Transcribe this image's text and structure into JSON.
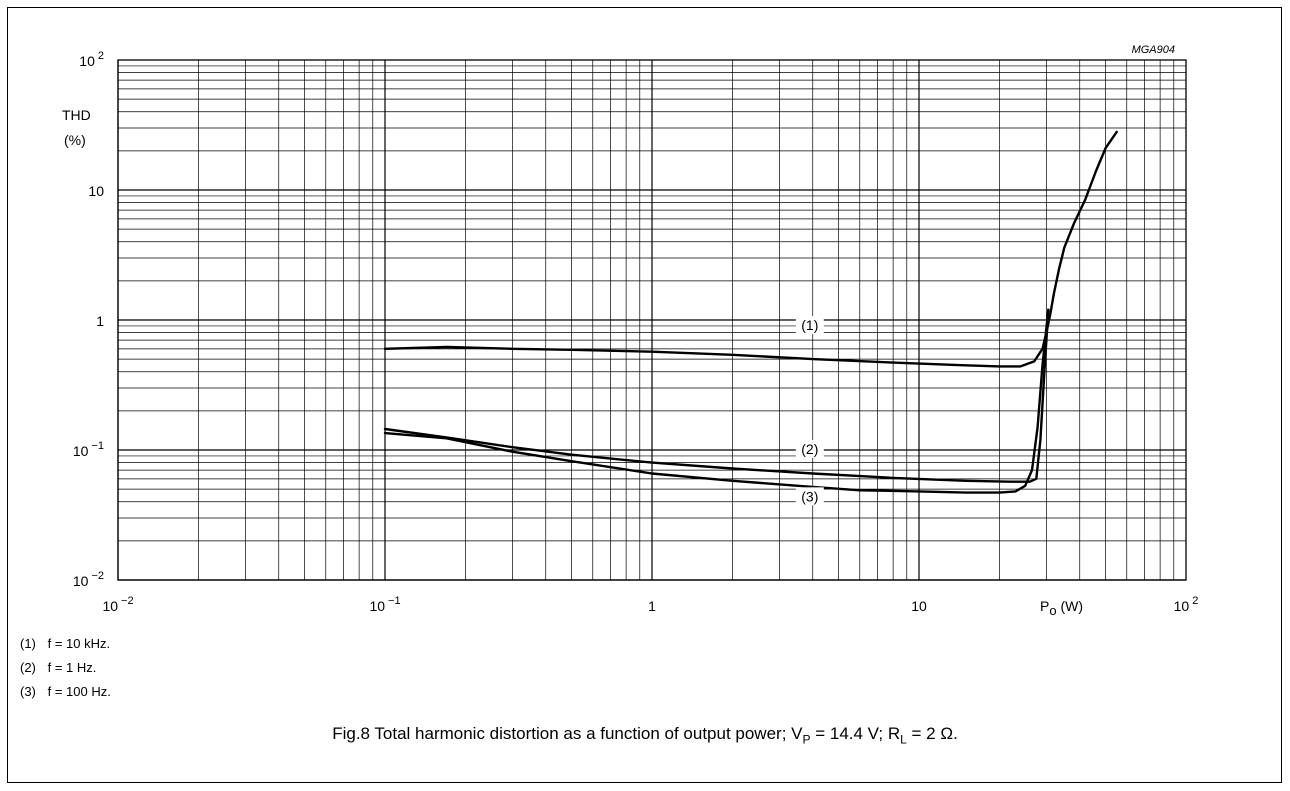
{
  "chart_data": {
    "type": "line",
    "code": "MGA904",
    "ylabel": "THD",
    "yunit": "(%)",
    "xlabel": "P",
    "xlabel_sub": "o",
    "xunit": "(W)",
    "x_scale": "log",
    "y_scale": "log",
    "xlim": [
      0.01,
      100
    ],
    "ylim": [
      0.01,
      100
    ],
    "grid": true,
    "x_ticks": [
      {
        "value": 0.01,
        "base": "10",
        "exp": "−2"
      },
      {
        "value": 0.1,
        "base": "10",
        "exp": "−1"
      },
      {
        "value": 1,
        "base": "1",
        "exp": ""
      },
      {
        "value": 10,
        "base": "10",
        "exp": ""
      },
      {
        "value": 100,
        "base": "10",
        "exp": "2"
      }
    ],
    "y_ticks": [
      {
        "value": 100,
        "base": "10",
        "exp": "2"
      },
      {
        "value": 10,
        "base": "10",
        "exp": ""
      },
      {
        "value": 1,
        "base": "1",
        "exp": ""
      },
      {
        "value": 0.1,
        "base": "10",
        "exp": "−1"
      },
      {
        "value": 0.01,
        "base": "10",
        "exp": "−2"
      }
    ],
    "series": [
      {
        "label": "(1)",
        "label_at": [
          3.9,
          0.85
        ],
        "points": [
          [
            0.1,
            0.6
          ],
          [
            0.17,
            0.62
          ],
          [
            0.3,
            0.6
          ],
          [
            0.5,
            0.59
          ],
          [
            1,
            0.57
          ],
          [
            2,
            0.54
          ],
          [
            4,
            0.5
          ],
          [
            8,
            0.47
          ],
          [
            14,
            0.45
          ],
          [
            20,
            0.44
          ],
          [
            24,
            0.44
          ],
          [
            27,
            0.48
          ],
          [
            29,
            0.6
          ],
          [
            30,
            0.8
          ],
          [
            31,
            1.1
          ],
          [
            32,
            1.6
          ],
          [
            33.5,
            2.5
          ],
          [
            35,
            3.6
          ],
          [
            38,
            5.5
          ],
          [
            42,
            8.5
          ],
          [
            46,
            14
          ],
          [
            50,
            21
          ],
          [
            55,
            28
          ]
        ]
      },
      {
        "label": "(2)",
        "label_at": [
          3.9,
          0.095
        ],
        "points": [
          [
            0.1,
            0.145
          ],
          [
            0.17,
            0.125
          ],
          [
            0.3,
            0.105
          ],
          [
            0.5,
            0.092
          ],
          [
            1,
            0.08
          ],
          [
            2,
            0.072
          ],
          [
            4,
            0.066
          ],
          [
            8,
            0.061
          ],
          [
            15,
            0.058
          ],
          [
            22,
            0.057
          ],
          [
            26,
            0.057
          ],
          [
            27.5,
            0.06
          ],
          [
            28.5,
            0.12
          ],
          [
            29.5,
            0.4
          ],
          [
            30.5,
            1.2
          ]
        ]
      },
      {
        "label": "(3)",
        "label_at": [
          3.9,
          0.041
        ],
        "points": [
          [
            0.1,
            0.135
          ],
          [
            0.17,
            0.123
          ],
          [
            0.3,
            0.097
          ],
          [
            0.5,
            0.082
          ],
          [
            1,
            0.066
          ],
          [
            2,
            0.058
          ],
          [
            4,
            0.052
          ],
          [
            6,
            0.049
          ],
          [
            10,
            0.048
          ],
          [
            15,
            0.047
          ],
          [
            20,
            0.047
          ],
          [
            23,
            0.048
          ],
          [
            25,
            0.053
          ],
          [
            26.5,
            0.07
          ],
          [
            27.8,
            0.15
          ],
          [
            29,
            0.45
          ],
          [
            30.5,
            1.2
          ]
        ]
      }
    ]
  },
  "legend": [
    {
      "num": "(1)",
      "text": "f = 10  kHz."
    },
    {
      "num": "(2)",
      "text": "f = 1 Hz."
    },
    {
      "num": "(3)",
      "text": "f = 100 Hz."
    }
  ],
  "caption": {
    "prefix": "Fig.8  Total harmonic distortion as a function of output power; V",
    "vp_sub": "P",
    "mid": " = 14.4 V; R",
    "rl_sub": "L",
    "suffix": " = 2 Ω."
  }
}
